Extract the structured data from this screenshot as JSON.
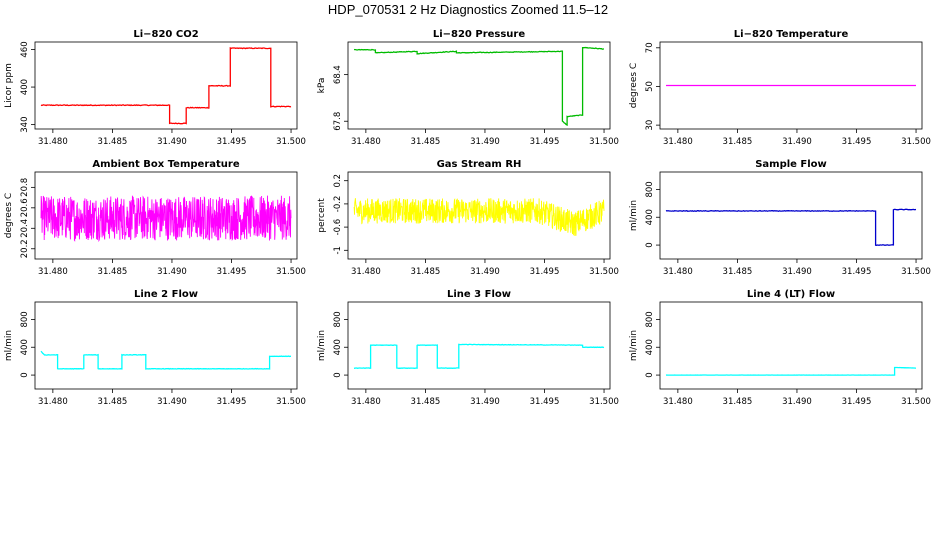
{
  "title": "HDP_070531  2 Hz Diagnostics Zoomed 11.5–12",
  "chart_data": [
    {
      "type": "line",
      "title": "Li−820 CO2",
      "ylabel": "Licor ppm",
      "color": "#ff0000",
      "xlim": [
        31.4785,
        31.5005
      ],
      "ylim": [
        333,
        472
      ],
      "yticks": [
        340,
        400,
        460
      ],
      "noise": 0.6,
      "x": [
        31.479,
        31.4898,
        31.4898,
        31.4912,
        31.4912,
        31.4931,
        31.4931,
        31.4949,
        31.4949,
        31.4983,
        31.4983,
        31.5
      ],
      "y": [
        371,
        371,
        342,
        342,
        367,
        367,
        402,
        402,
        462,
        462,
        369,
        369
      ]
    },
    {
      "type": "line",
      "title": "Li−820 Pressure",
      "ylabel": "kPa",
      "color": "#00bb00",
      "xlim": [
        31.4785,
        31.5005
      ],
      "ylim": [
        67.7,
        68.82
      ],
      "yticks": [
        67.8,
        68.4
      ],
      "noise": 0.004,
      "x": [
        31.479,
        31.4808,
        31.4808,
        31.4843,
        31.4843,
        31.4876,
        31.4876,
        31.4965,
        31.4965,
        31.4969,
        31.4969,
        31.4982,
        31.4982,
        31.5
      ],
      "y": [
        68.72,
        68.72,
        68.68,
        68.7,
        68.67,
        68.7,
        68.68,
        68.7,
        67.8,
        67.75,
        67.86,
        67.88,
        68.75,
        68.73
      ]
    },
    {
      "type": "line",
      "title": "Li−820 Temperature",
      "ylabel": "degrees C",
      "color": "#ff00ff",
      "xlim": [
        31.4785,
        31.5005
      ],
      "ylim": [
        28,
        73
      ],
      "yticks": [
        30,
        50,
        70
      ],
      "noise": 0,
      "x": [
        31.479,
        31.5
      ],
      "y": [
        50.5,
        50.5
      ]
    },
    {
      "type": "line",
      "title": "Ambient Box Temperature",
      "ylabel": "degrees C",
      "color": "#ff00ff",
      "xlim": [
        31.4785,
        31.5005
      ],
      "ylim": [
        20.1,
        20.95
      ],
      "yticks": [
        20.2,
        20.4,
        20.6,
        20.8
      ],
      "noise": 0.22,
      "dense": true,
      "x": [
        31.479,
        31.5
      ],
      "y": [
        20.5,
        20.5
      ]
    },
    {
      "type": "line",
      "title": "Gas Stream RH",
      "ylabel": "percent",
      "color": "#ffff00",
      "xlim": [
        31.4785,
        31.5005
      ],
      "ylim": [
        -1.15,
        0.35
      ],
      "yticks": [
        -1.0,
        -0.6,
        -0.2,
        0.2
      ],
      "noise": 0.22,
      "dense": true,
      "x": [
        31.479,
        31.4945,
        31.4975,
        31.5
      ],
      "y": [
        -0.32,
        -0.32,
        -0.55,
        -0.32
      ]
    },
    {
      "type": "line",
      "title": "Sample Flow",
      "ylabel": "ml/min",
      "color": "#0000cc",
      "xlim": [
        31.4785,
        31.5005
      ],
      "ylim": [
        -200,
        1050
      ],
      "yticks": [
        0,
        400,
        800
      ],
      "noise": 4,
      "x": [
        31.479,
        31.4966,
        31.4966,
        31.4981,
        31.4981,
        31.5
      ],
      "y": [
        490,
        490,
        0,
        0,
        510,
        510
      ]
    },
    {
      "type": "line",
      "title": "Line 2 Flow",
      "ylabel": "ml/min",
      "color": "#00ffff",
      "xlim": [
        31.4785,
        31.5005
      ],
      "ylim": [
        -200,
        1050
      ],
      "yticks": [
        0,
        400,
        800
      ],
      "noise": 3,
      "x": [
        31.479,
        31.4793,
        31.4804,
        31.4804,
        31.4826,
        31.4826,
        31.4838,
        31.4838,
        31.4858,
        31.4858,
        31.4878,
        31.4878,
        31.4982,
        31.4982,
        31.5
      ],
      "y": [
        340,
        290,
        290,
        90,
        90,
        290,
        290,
        90,
        90,
        290,
        290,
        90,
        90,
        270,
        270
      ]
    },
    {
      "type": "line",
      "title": "Line 3 Flow",
      "ylabel": "ml/min",
      "color": "#00ffff",
      "xlim": [
        31.4785,
        31.5005
      ],
      "ylim": [
        -200,
        1050
      ],
      "yticks": [
        0,
        400,
        800
      ],
      "noise": 3,
      "x": [
        31.479,
        31.4804,
        31.4804,
        31.4826,
        31.4826,
        31.4843,
        31.4843,
        31.486,
        31.486,
        31.4878,
        31.4878,
        31.4982,
        31.4982,
        31.5
      ],
      "y": [
        100,
        100,
        430,
        430,
        100,
        100,
        430,
        430,
        100,
        100,
        440,
        430,
        400,
        400
      ]
    },
    {
      "type": "line",
      "title": "Line 4 (LT) Flow",
      "ylabel": "ml/min",
      "color": "#00ffff",
      "xlim": [
        31.4785,
        31.5005
      ],
      "ylim": [
        -200,
        1050
      ],
      "yticks": [
        0,
        400,
        800
      ],
      "noise": 1,
      "x": [
        31.479,
        31.4982,
        31.4982,
        31.5
      ],
      "y": [
        0,
        0,
        110,
        100
      ]
    }
  ],
  "xticks": [
    "31.480",
    "31.485",
    "31.490",
    "31.495",
    "31.500"
  ],
  "xtick_values": [
    31.48,
    31.485,
    31.49,
    31.495,
    31.5
  ]
}
